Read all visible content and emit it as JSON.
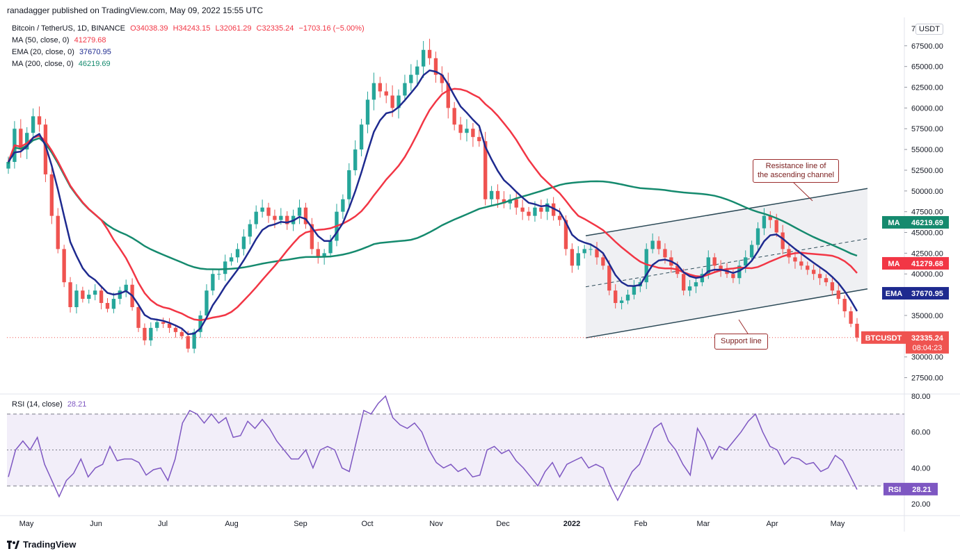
{
  "publisher": "ranadagger published on TradingView.com, May 09, 2022 15:55 UTC",
  "legend": {
    "title": "Bitcoin / TetherUS, 1D, BINANCE",
    "open": "O34038.39",
    "high": "H34243.15",
    "low": "L32061.29",
    "close": "C32335.24",
    "change": "−1703.16 (−5.00%)",
    "ma50_label": "MA (50, close, 0)",
    "ma50_value": "41279.68",
    "ema20_label": "EMA (20, close, 0)",
    "ema20_value": "37670.95",
    "ma200_label": "MA (200, close, 0)",
    "ma200_value": "46219.69"
  },
  "currency_button": "USDT",
  "rsi_legend": {
    "label": "RSI (14, close)",
    "value": "28.21"
  },
  "annotations": {
    "resistance": [
      "Resistance line of",
      "the ascending channel"
    ],
    "support": "Support line"
  },
  "branding": "TradingView",
  "colors": {
    "up": "#26a69a",
    "down": "#ef5350",
    "ma50": "#f23645",
    "ema20": "#1e2a8f",
    "ma200": "#158a6e",
    "rsi": "#7e57c2",
    "trendline": "#2c4a57",
    "callout": "#9b2c2c"
  },
  "chart_data": [
    {
      "type": "candlestick",
      "symbol": "BTCUSDT",
      "price_axis_ticks": [
        27500,
        30000,
        35000,
        37500,
        40000,
        42500,
        45000,
        47500,
        50000,
        52500,
        55000,
        57500,
        60000,
        62500,
        65000,
        67500
      ],
      "price_axis_tick_labels": [
        "27500.00",
        "30000.00",
        "35000.00",
        "37500.00",
        "40000.00",
        "42500.00",
        "45000.00",
        "47500.00",
        "50000.00",
        "52500.00",
        "55000.00",
        "57500.00",
        "60000.00",
        "62500.00",
        "65000.00",
        "67500.00"
      ],
      "price_axis_top_label": "7",
      "x_tick_labels": [
        "May",
        "Jun",
        "Jul",
        "Aug",
        "Sep",
        "Oct",
        "Nov",
        "Dec",
        "2022",
        "Feb",
        "Mar",
        "Apr",
        "May"
      ],
      "ylim": [
        25700,
        70500
      ],
      "closes": [
        53500,
        57500,
        55000,
        57000,
        59000,
        58000,
        52000,
        47000,
        43000,
        39000,
        36000,
        38000,
        37000,
        37500,
        38000,
        36500,
        35800,
        37000,
        38000,
        38700,
        36000,
        33500,
        32000,
        33500,
        34200,
        34000,
        33500,
        33000,
        32500,
        31000,
        33000,
        35000,
        38000,
        40000,
        40000,
        41500,
        42000,
        43000,
        44500,
        46000,
        47500,
        48000,
        47000,
        46500,
        47000,
        46000,
        47000,
        48000,
        46000,
        43000,
        42000,
        42500,
        44000,
        47500,
        49000,
        52500,
        55000,
        58000,
        61000,
        63000,
        62000,
        61500,
        60000,
        61500,
        63000,
        64000,
        65000,
        67000,
        66000,
        64000,
        63000,
        60000,
        58000,
        57000,
        57500,
        56500,
        56000,
        49000,
        50000,
        49000,
        48500,
        49000,
        48000,
        47500,
        47000,
        48000,
        47500,
        48500,
        47000,
        46500,
        43000,
        41000,
        42500,
        43000,
        43000,
        42000,
        41000,
        38000,
        36500,
        36800,
        37500,
        38500,
        39000,
        43000,
        44000,
        43000,
        42000,
        41000,
        40000,
        38000,
        38500,
        39000,
        40000,
        42000,
        41000,
        40500,
        40000,
        39500,
        41000,
        42000,
        43500,
        45500,
        47000,
        46500,
        45000,
        43000,
        42000,
        41500,
        41000,
        40500,
        40000,
        39500,
        39000,
        38000,
        37000,
        35500,
        34000,
        32335
      ],
      "closes_note": "approximate sampled daily closes, May 2021 – May 9, 2022",
      "last_price": "32335.24",
      "last_price_countdown": "08:04:23",
      "last_price_label": "BTCUSDT",
      "indicator_labels": [
        {
          "tag": "MA",
          "value": "46219.69"
        },
        {
          "tag": "MA",
          "value": "41279.68"
        },
        {
          "tag": "EMA",
          "value": "37670.95"
        }
      ]
    },
    {
      "type": "line",
      "name": "RSI (14, close)",
      "ylim": [
        15,
        80
      ],
      "y_tick_labels": [
        "80.00",
        "60.00",
        "40.00",
        "20.00"
      ],
      "bands": [
        30,
        50,
        70
      ],
      "values": [
        35,
        50,
        55,
        50,
        57,
        42,
        33,
        24,
        33,
        37,
        45,
        35,
        40,
        42,
        52,
        44,
        45,
        45,
        43,
        36,
        39,
        40,
        33,
        45,
        65,
        72,
        70,
        65,
        70,
        65,
        68,
        57,
        58,
        66,
        62,
        67,
        62,
        55,
        50,
        45,
        45,
        50,
        40,
        50,
        52,
        50,
        40,
        38,
        55,
        72,
        70,
        76,
        80,
        68,
        64,
        62,
        65,
        60,
        50,
        43,
        40,
        42,
        38,
        40,
        35,
        36,
        50,
        52,
        48,
        50,
        44,
        40,
        35,
        30,
        38,
        43,
        35,
        42,
        44,
        46,
        40,
        42,
        40,
        30,
        22,
        30,
        38,
        42,
        52,
        62,
        65,
        55,
        50,
        42,
        36,
        62,
        55,
        45,
        52,
        50,
        55,
        60,
        66,
        70,
        60,
        52,
        50,
        42,
        46,
        45,
        42,
        43,
        38,
        40,
        47,
        44,
        36,
        28
      ],
      "last_value": "28.21"
    }
  ]
}
